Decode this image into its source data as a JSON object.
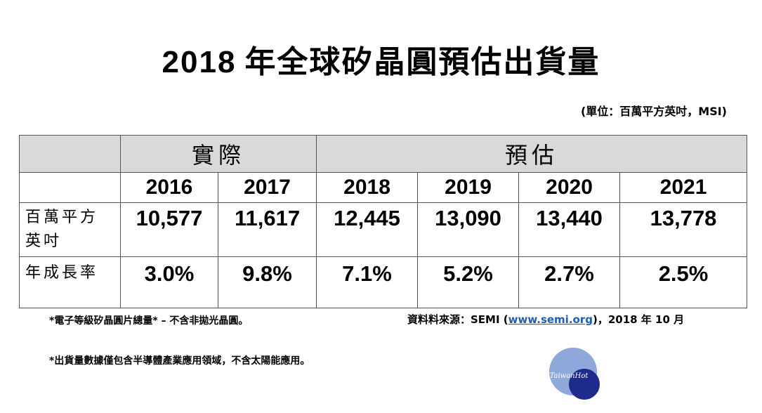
{
  "title": {
    "year": "2018",
    "text": "年全球矽晶圓預估出貨量"
  },
  "unit": "(單位：百萬平方英吋，MSI)",
  "header": {
    "actual": "實際",
    "forecast": "預估"
  },
  "years": [
    "2016",
    "2017",
    "2018",
    "2019",
    "2020",
    "2021"
  ],
  "rows": {
    "msi_label": "百萬平方英吋",
    "msi_label_line1": "百萬平方",
    "msi_label_line2": "英吋",
    "msi_values": [
      "10,577",
      "11,617",
      "12,445",
      "13,090",
      "13,440",
      "13,778"
    ],
    "growth_label": "年成長率",
    "growth_values": [
      "3.0%",
      "9.8%",
      "7.1%",
      "5.2%",
      "2.7%",
      "2.5%"
    ]
  },
  "notes": {
    "note1": "*電子等級矽晶圓片總量* – 不含非拋光晶圓。",
    "source_prefix": "資料料來源：SEMI (",
    "source_link": "www.semi.org",
    "source_suffix": ")，2018 年 10 月",
    "note2": "*出貨量數據僅包含半導體產業應用領域，不含太陽能應用。"
  },
  "logo_text": "TaiwanHot",
  "colors": {
    "header_bg": "#d9d9d9",
    "link": "#1f5fb3",
    "logo_light": "#8fa8dc",
    "logo_dark": "#1e2a8c"
  },
  "chart_data": {
    "type": "table",
    "title": "2018 年全球矽晶圓預估出貨量",
    "columns": [
      "2016",
      "2017",
      "2018",
      "2019",
      "2020",
      "2021"
    ],
    "column_groups": [
      {
        "name": "實際",
        "columns": [
          "2016",
          "2017"
        ]
      },
      {
        "name": "預估",
        "columns": [
          "2018",
          "2019",
          "2020",
          "2021"
        ]
      }
    ],
    "series": [
      {
        "name": "百萬平方英吋",
        "values": [
          10577,
          11617,
          12445,
          13090,
          13440,
          13778
        ]
      },
      {
        "name": "年成長率",
        "values": [
          3.0,
          9.8,
          7.1,
          5.2,
          2.7,
          2.5
        ]
      }
    ]
  }
}
